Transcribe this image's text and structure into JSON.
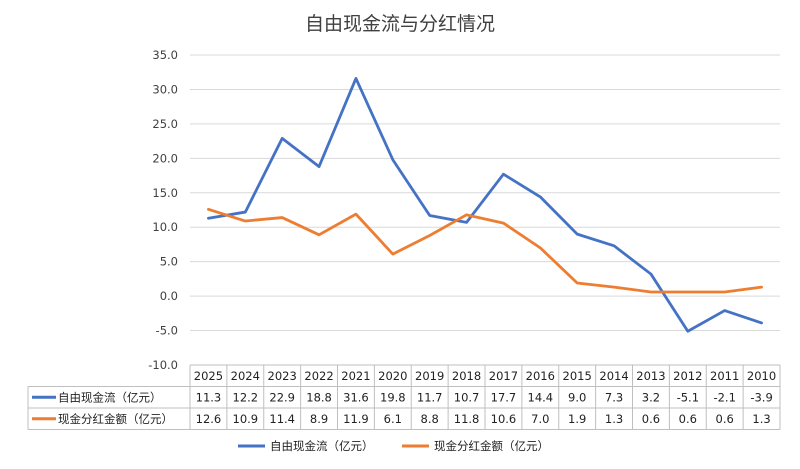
{
  "chart_data": {
    "type": "line",
    "title": "自由现金流与分红情况",
    "categories": [
      "2025",
      "2024",
      "2023",
      "2022",
      "2021",
      "2020",
      "2019",
      "2018",
      "2017",
      "2016",
      "2015",
      "2014",
      "2013",
      "2012",
      "2011",
      "2010"
    ],
    "series": [
      {
        "name": "自由现金流（亿元）",
        "color": "#4472C4",
        "values": [
          11.3,
          12.2,
          22.9,
          18.8,
          31.6,
          19.8,
          11.7,
          10.7,
          17.7,
          14.4,
          9.0,
          7.3,
          3.2,
          -5.1,
          -2.1,
          -3.9
        ],
        "labels": [
          "11.3",
          "12.2",
          "22.9",
          "18.8",
          "31.6",
          "19.8",
          "11.7",
          "10.7",
          "17.7",
          "14.4",
          "9.0",
          "7.3",
          "3.2",
          "-5.1",
          "-2.1",
          "-3.9"
        ]
      },
      {
        "name": "现金分红金额（亿元）",
        "color": "#ED7D31",
        "values": [
          12.6,
          10.9,
          11.4,
          8.9,
          11.9,
          6.1,
          8.8,
          11.8,
          10.6,
          7.0,
          1.9,
          1.3,
          0.6,
          0.6,
          0.6,
          1.3
        ],
        "labels": [
          "12.6",
          "10.9",
          "11.4",
          "8.9",
          "11.9",
          "6.1",
          "8.8",
          "11.8",
          "10.6",
          "7.0",
          "1.9",
          "1.3",
          "0.6",
          "0.6",
          "0.6",
          "1.3"
        ]
      }
    ],
    "ylim": [
      -10,
      35
    ],
    "y_ticks": [
      "35.0",
      "30.0",
      "25.0",
      "20.0",
      "15.0",
      "10.0",
      "5.0",
      "0.0",
      "-5.0",
      "-10.0"
    ],
    "grid": true,
    "data_table": true,
    "legend_position": "bottom"
  }
}
